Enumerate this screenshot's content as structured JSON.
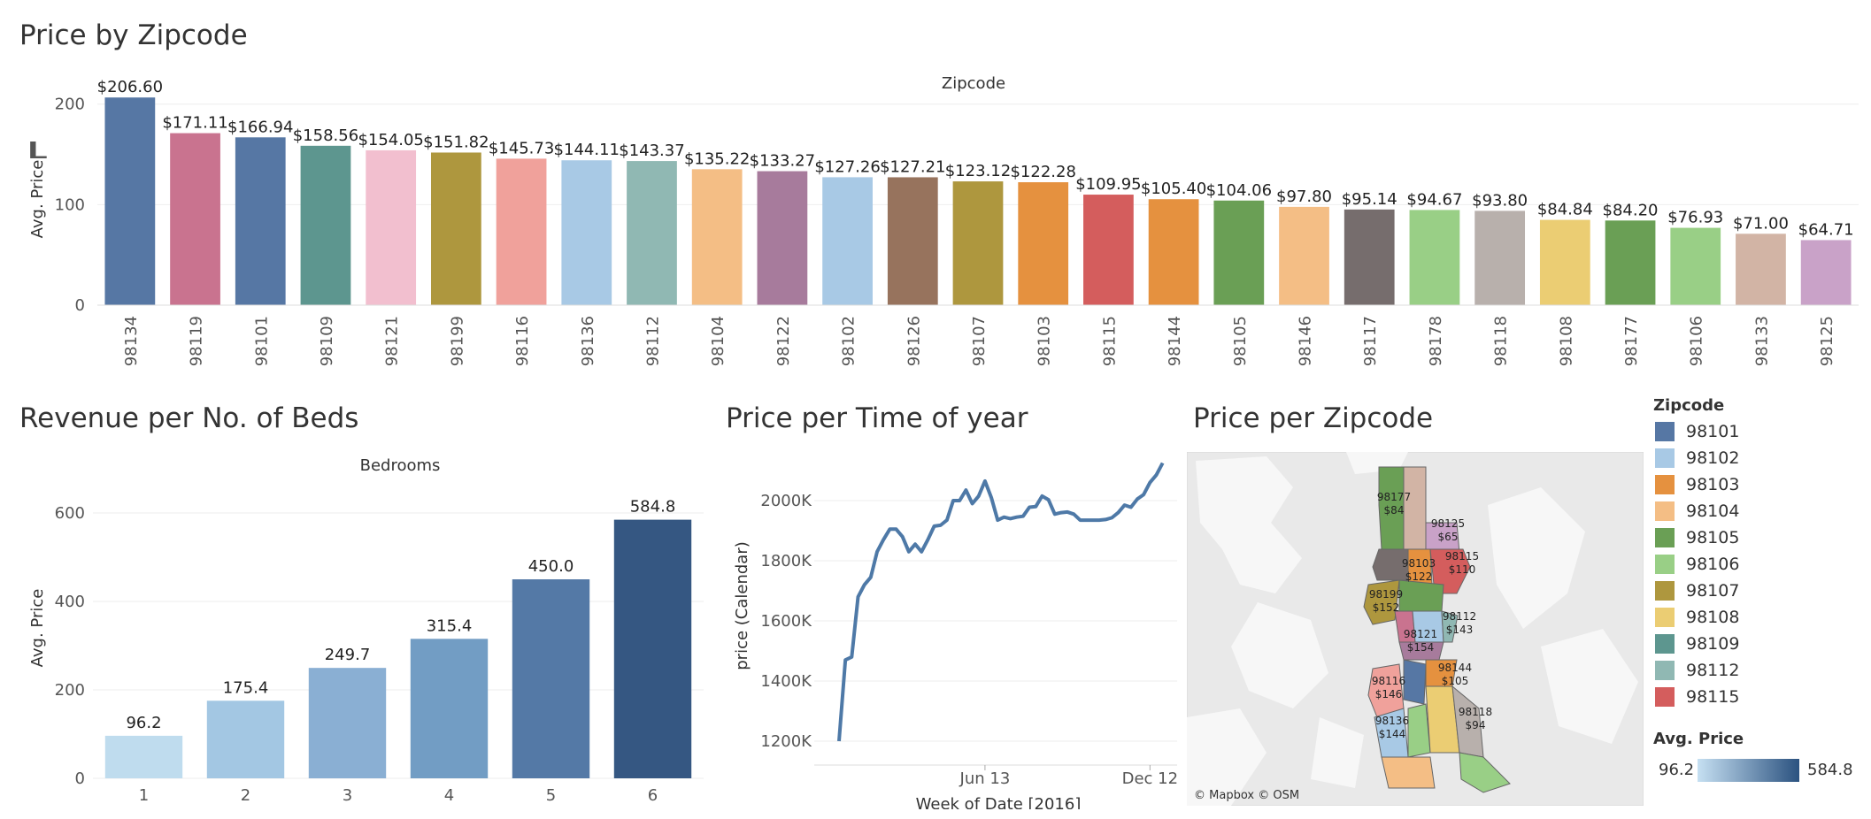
{
  "titles": {
    "zipcode_price": "Price by Zipcode",
    "revenue_beds": "Revenue per No. of Beds",
    "time_of_year": "Price per Time of year",
    "map": "Price per Zipcode"
  },
  "chart_data": [
    {
      "type": "bar",
      "title": "Price by Zipcode",
      "header": "Zipcode",
      "ylabel": "Avg. Price",
      "ylim": [
        0,
        220
      ],
      "yticks": [
        "0",
        "100",
        "200"
      ],
      "yticks_values": [
        0,
        100,
        200
      ],
      "categories": [
        "98134",
        "98119",
        "98101",
        "98109",
        "98121",
        "98199",
        "98116",
        "98136",
        "98112",
        "98104",
        "98122",
        "98102",
        "98126",
        "98107",
        "98103",
        "98115",
        "98144",
        "98105",
        "98146",
        "98117",
        "98178",
        "98118",
        "98108",
        "98177",
        "98106",
        "98133",
        "98125"
      ],
      "values": [
        206.6,
        171.11,
        166.94,
        158.56,
        154.05,
        151.82,
        145.73,
        144.11,
        143.37,
        135.22,
        133.27,
        127.26,
        127.21,
        123.12,
        122.28,
        109.95,
        105.4,
        104.06,
        97.8,
        95.14,
        94.67,
        93.8,
        84.84,
        84.2,
        76.93,
        71.0,
        64.71
      ],
      "labels": [
        "$206.60",
        "$171.11",
        "$166.94",
        "$158.56",
        "$154.05",
        "$151.82",
        "$145.73",
        "$144.11",
        "$143.37",
        "$135.22",
        "$133.27",
        "$127.26",
        "$127.21",
        "$123.12",
        "$122.28",
        "$109.95",
        "$105.40",
        "$104.06",
        "$97.80",
        "$95.14",
        "$94.67",
        "$93.80",
        "$84.84",
        "$84.20",
        "$76.93",
        "$71.00",
        "$64.71"
      ],
      "colors": [
        "#5677a4",
        "#c9738f",
        "#5677a4",
        "#5d968f",
        "#f2bfcf",
        "#ae973e",
        "#f0a19b",
        "#a8c9e5",
        "#90b8b3",
        "#f4be85",
        "#a77b9c",
        "#a8c9e5",
        "#97735d",
        "#ae973e",
        "#e5913f",
        "#d45d5d",
        "#e5913f",
        "#6a9f55",
        "#f4be85",
        "#766d6d",
        "#99cf86",
        "#b8b0ac",
        "#ebcd73",
        "#6a9f55",
        "#99cf86",
        "#d2b4a5",
        "#c9a2c8"
      ]
    },
    {
      "type": "bar",
      "title": "Revenue per No. of Beds",
      "header": "Bedrooms",
      "ylabel": "Avg. Price",
      "ylim": [
        0,
        650
      ],
      "yticks": [
        "0",
        "200",
        "400",
        "600"
      ],
      "yticks_values": [
        0,
        200,
        400,
        600
      ],
      "categories": [
        "1",
        "2",
        "3",
        "4",
        "5",
        "6"
      ],
      "values": [
        96.2,
        175.4,
        249.7,
        315.4,
        450.0,
        584.8
      ],
      "labels": [
        "96.2",
        "175.4",
        "249.7",
        "315.4",
        "450.0",
        "584.8"
      ],
      "colors": [
        "#bfdcee",
        "#a3c7e3",
        "#8aafd3",
        "#729dc4",
        "#5479a6",
        "#355782"
      ]
    },
    {
      "type": "line",
      "title": "Price per Time of year",
      "xlabel": "Week of Date [2016]",
      "ylabel": "price (Calendar)",
      "ylim": [
        1150000,
        2150000
      ],
      "yticks": [
        "1200K",
        "1400K",
        "1600K",
        "1800K",
        "2000K"
      ],
      "yticks_values": [
        1200000,
        1400000,
        1600000,
        1800000,
        2000000
      ],
      "xticks": [
        "Jun 13",
        "Dec 12"
      ],
      "xticks_weeks": [
        23,
        49
      ],
      "x_weeks": [
        0,
        1,
        2,
        3,
        4,
        5,
        6,
        7,
        8,
        9,
        10,
        11,
        12,
        13,
        14,
        15,
        16,
        17,
        18,
        19,
        20,
        21,
        22,
        23,
        24,
        25,
        26,
        27,
        28,
        29,
        30,
        31,
        32,
        33,
        34,
        35,
        36,
        37,
        38,
        39,
        40,
        41,
        42,
        43,
        44,
        45,
        46,
        47,
        48,
        49,
        50,
        51
      ],
      "y": [
        1200000,
        1470000,
        1480000,
        1680000,
        1720000,
        1745000,
        1830000,
        1870000,
        1905000,
        1905000,
        1880000,
        1830000,
        1855000,
        1830000,
        1870000,
        1915000,
        1918000,
        1935000,
        2000000,
        2000000,
        2035000,
        1990000,
        2015000,
        2065000,
        2010000,
        1935000,
        1945000,
        1940000,
        1945000,
        1948000,
        1978000,
        1980000,
        2015000,
        2003000,
        1955000,
        1960000,
        1962000,
        1955000,
        1935000,
        1935000,
        1935000,
        1935000,
        1937000,
        1943000,
        1960000,
        1985000,
        1978000,
        2005000,
        2020000,
        2060000,
        2085000,
        2125000
      ],
      "color": "#4e79a7"
    }
  ],
  "map": {
    "credits": "© Mapbox  © OSM",
    "labels": [
      {
        "zip": "98177",
        "price": "$84"
      },
      {
        "zip": "98125",
        "price": "$65"
      },
      {
        "zip": "98115",
        "price": "$110"
      },
      {
        "zip": "98103",
        "price": "$122"
      },
      {
        "zip": "98199",
        "price": "$152"
      },
      {
        "zip": "98112",
        "price": "$143"
      },
      {
        "zip": "98121",
        "price": "$154"
      },
      {
        "zip": "98144",
        "price": "$105"
      },
      {
        "zip": "98116",
        "price": "$146"
      },
      {
        "zip": "98136",
        "price": "$144"
      },
      {
        "zip": "98118",
        "price": "$94"
      }
    ]
  },
  "legend": {
    "title": "Zipcode",
    "items": [
      {
        "zip": "98101",
        "color": "#5677a4"
      },
      {
        "zip": "98102",
        "color": "#a8c9e5"
      },
      {
        "zip": "98103",
        "color": "#e5913f"
      },
      {
        "zip": "98104",
        "color": "#f4be85"
      },
      {
        "zip": "98105",
        "color": "#6a9f55"
      },
      {
        "zip": "98106",
        "color": "#99cf86"
      },
      {
        "zip": "98107",
        "color": "#ae973e"
      },
      {
        "zip": "98108",
        "color": "#ebcd73"
      },
      {
        "zip": "98109",
        "color": "#5d968f"
      },
      {
        "zip": "98112",
        "color": "#90b8b3"
      },
      {
        "zip": "98115",
        "color": "#d45d5d"
      }
    ]
  },
  "color_legend": {
    "title": "Avg. Price",
    "min": "96.2",
    "max": "584.8",
    "from": "#c6e0f2",
    "to": "#2b5280"
  }
}
